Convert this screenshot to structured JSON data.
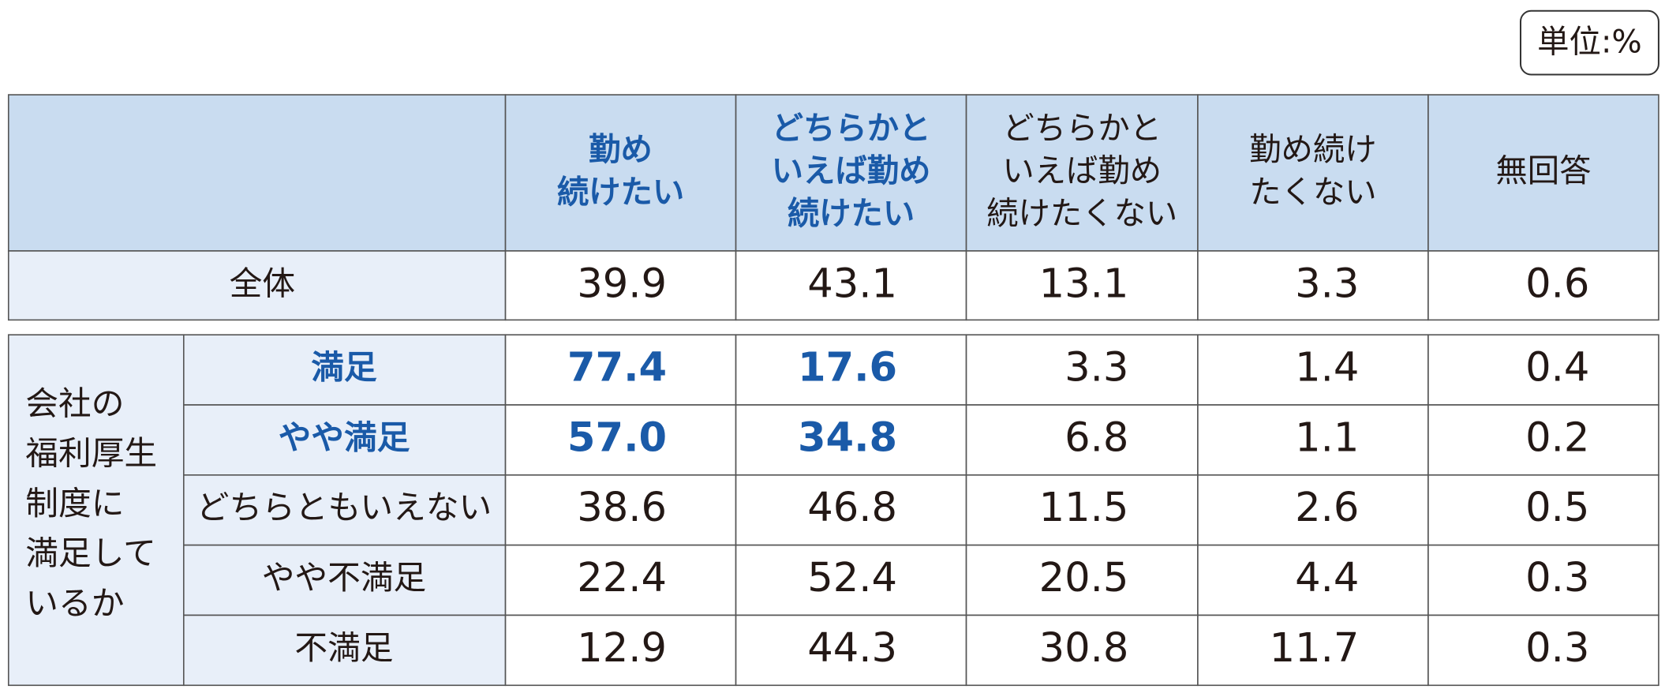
{
  "unit": "単位:%",
  "table": {
    "columns": [
      [
        "勤め",
        "続けたい"
      ],
      [
        "どちらかと",
        "いえば勤め",
        "続けたい"
      ],
      [
        "どちらかと",
        "いえば勤め",
        "続けたくない"
      ],
      [
        "勤め続け",
        "たくない"
      ],
      [
        "無回答"
      ]
    ],
    "total": {
      "label": "全体",
      "values": [
        "39.9",
        "43.1",
        "13.1",
        "3.3",
        "0.6"
      ]
    },
    "group": {
      "label": [
        "会社の",
        "福利厚生",
        "制度に",
        "満足して",
        "いるか"
      ],
      "rows": [
        {
          "label": "満足",
          "values": [
            "77.4",
            "17.6",
            "3.3",
            "1.4",
            "0.4"
          ]
        },
        {
          "label": "やや満足",
          "values": [
            "57.0",
            "34.8",
            "6.8",
            "1.1",
            "0.2"
          ]
        },
        {
          "label": "どちらともいえない",
          "values": [
            "38.6",
            "46.8",
            "11.5",
            "2.6",
            "0.5"
          ]
        },
        {
          "label": "やや不満足",
          "values": [
            "22.4",
            "52.4",
            "20.5",
            "4.4",
            "0.3"
          ]
        },
        {
          "label": "不満足",
          "values": [
            "12.9",
            "44.3",
            "30.8",
            "11.7",
            "0.3"
          ]
        }
      ]
    }
  }
}
